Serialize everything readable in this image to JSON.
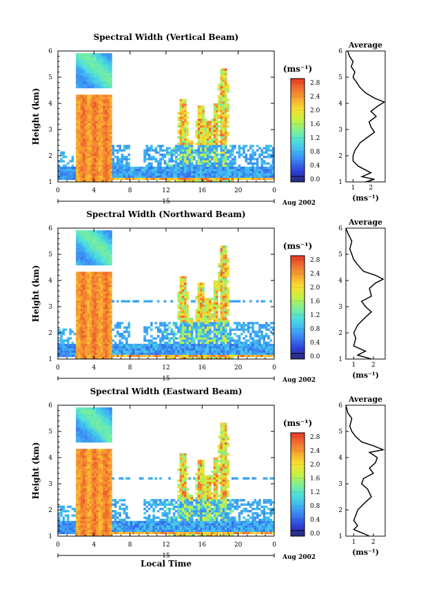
{
  "chart_data": [
    {
      "type": "heatmap",
      "title": "Spectral Width (Vertical Beam)",
      "ylabel": "Height (km)",
      "xticks": [
        "0",
        "4",
        "8",
        "12",
        "16",
        "20",
        "0"
      ],
      "yticks": [
        "1",
        "2",
        "3",
        "4",
        "5",
        "6"
      ],
      "xlim": [
        0,
        24
      ],
      "ylim": [
        1,
        6
      ],
      "day_label": "15",
      "date_label": "Aug 2002",
      "colorbar": {
        "unit": "(ms⁻¹)",
        "ticks": [
          "2.8",
          "2.4",
          "2.0",
          "1.6",
          "1.2",
          "0.8",
          "0.4",
          "0.0"
        ],
        "range": [
          0,
          3.0
        ]
      },
      "average": {
        "title": "Average",
        "xlabel": "(ms⁻¹)",
        "xticks": [
          "1",
          "2"
        ],
        "xlim": [
          0.6,
          2.8
        ],
        "yticks": [
          "1",
          "2",
          "3",
          "4",
          "5",
          "6"
        ],
        "profile": [
          [
            1.0,
            1.7
          ],
          [
            1.1,
            2.2
          ],
          [
            1.2,
            1.5
          ],
          [
            1.35,
            2.0
          ],
          [
            1.6,
            1.3
          ],
          [
            1.8,
            1.0
          ],
          [
            2.0,
            1.0
          ],
          [
            2.2,
            1.1
          ],
          [
            2.5,
            1.4
          ],
          [
            2.7,
            1.8
          ],
          [
            2.9,
            2.2
          ],
          [
            3.1,
            2.0
          ],
          [
            3.3,
            1.9
          ],
          [
            3.5,
            2.3
          ],
          [
            3.7,
            2.0
          ],
          [
            3.9,
            2.4
          ],
          [
            4.05,
            2.75
          ],
          [
            4.2,
            2.2
          ],
          [
            4.4,
            1.7
          ],
          [
            4.6,
            1.4
          ],
          [
            4.8,
            1.2
          ],
          [
            5.0,
            1.0
          ],
          [
            5.2,
            1.1
          ],
          [
            5.4,
            0.9
          ],
          [
            5.6,
            1.0
          ],
          [
            5.8,
            0.8
          ],
          [
            6.0,
            0.7
          ]
        ]
      }
    },
    {
      "type": "heatmap",
      "title": "Spectral Width (Northward Beam)",
      "ylabel": "Height (km)",
      "xticks": [
        "0",
        "4",
        "8",
        "12",
        "16",
        "20",
        "0"
      ],
      "yticks": [
        "1",
        "2",
        "3",
        "4",
        "5",
        "6"
      ],
      "xlim": [
        0,
        24
      ],
      "ylim": [
        1,
        6
      ],
      "day_label": "15",
      "date_label": "Aug 2002",
      "colorbar": {
        "unit": "(ms⁻¹)",
        "ticks": [
          "2.8",
          "2.4",
          "2.0",
          "1.6",
          "1.2",
          "0.8",
          "0.4",
          "0.0"
        ],
        "range": [
          0,
          3.0
        ]
      },
      "average": {
        "title": "Average",
        "xlabel": "(ms⁻¹)",
        "xticks": [
          "1",
          "2"
        ],
        "xlim": [
          0.6,
          2.6
        ],
        "yticks": [
          "1",
          "2",
          "3",
          "4",
          "5",
          "6"
        ],
        "profile": [
          [
            1.0,
            1.9
          ],
          [
            1.15,
            1.2
          ],
          [
            1.3,
            1.6
          ],
          [
            1.5,
            1.0
          ],
          [
            1.8,
            1.1
          ],
          [
            2.0,
            1.0
          ],
          [
            2.3,
            1.2
          ],
          [
            2.6,
            1.6
          ],
          [
            2.8,
            1.9
          ],
          [
            3.0,
            1.6
          ],
          [
            3.2,
            1.4
          ],
          [
            3.4,
            1.9
          ],
          [
            3.7,
            1.8
          ],
          [
            3.9,
            2.1
          ],
          [
            4.05,
            2.5
          ],
          [
            4.2,
            2.1
          ],
          [
            4.35,
            1.5
          ],
          [
            4.6,
            1.2
          ],
          [
            4.8,
            1.0
          ],
          [
            5.0,
            0.9
          ],
          [
            5.2,
            0.8
          ],
          [
            5.5,
            0.9
          ],
          [
            5.8,
            0.7
          ],
          [
            6.0,
            0.6
          ]
        ]
      }
    },
    {
      "type": "heatmap",
      "title": "Spectral Width (Eastward Beam)",
      "ylabel": "Height (km)",
      "xlabel": "Local Time",
      "xticks": [
        "0",
        "4",
        "8",
        "12",
        "16",
        "20",
        "0"
      ],
      "yticks": [
        "1",
        "2",
        "3",
        "4",
        "5",
        "6"
      ],
      "xlim": [
        0,
        24
      ],
      "ylim": [
        1,
        6
      ],
      "day_label": "15",
      "date_label": "Aug 2002",
      "colorbar": {
        "unit": "(ms⁻¹)",
        "ticks": [
          "2.8",
          "2.4",
          "2.0",
          "1.6",
          "1.2",
          "0.8",
          "0.4",
          "0.0"
        ],
        "range": [
          0,
          3.0
        ]
      },
      "average": {
        "title": "Average",
        "xlabel": "(ms⁻¹)",
        "xticks": [
          "1",
          "2"
        ],
        "xlim": [
          0.6,
          2.6
        ],
        "yticks": [
          "1",
          "2",
          "3",
          "4",
          "5",
          "6"
        ],
        "profile": [
          [
            1.0,
            1.8
          ],
          [
            1.1,
            1.5
          ],
          [
            1.25,
            1.0
          ],
          [
            1.4,
            1.2
          ],
          [
            1.6,
            1.0
          ],
          [
            1.8,
            1.1
          ],
          [
            2.0,
            1.2
          ],
          [
            2.3,
            1.6
          ],
          [
            2.5,
            1.9
          ],
          [
            2.8,
            1.7
          ],
          [
            3.0,
            1.4
          ],
          [
            3.2,
            1.5
          ],
          [
            3.4,
            2.0
          ],
          [
            3.6,
            1.8
          ],
          [
            3.8,
            2.1
          ],
          [
            4.0,
            2.2
          ],
          [
            4.2,
            1.8
          ],
          [
            4.3,
            2.5
          ],
          [
            4.45,
            2.0
          ],
          [
            4.6,
            1.4
          ],
          [
            4.8,
            1.1
          ],
          [
            5.0,
            0.9
          ],
          [
            5.2,
            0.8
          ],
          [
            5.5,
            0.9
          ],
          [
            5.7,
            0.7
          ],
          [
            6.0,
            0.6
          ]
        ]
      }
    }
  ]
}
